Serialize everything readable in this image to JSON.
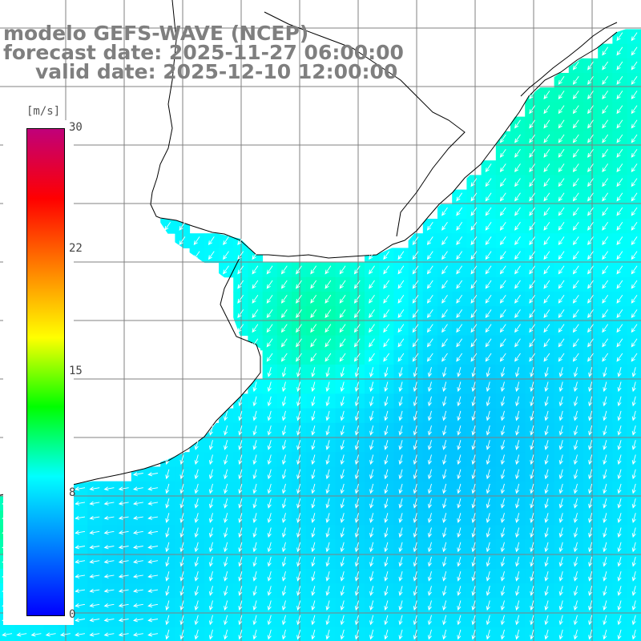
{
  "title": {
    "line1": "modelo GEFS-WAVE (NCEP)",
    "line2": "forecast date: 2025-11-27 06:00:00",
    "line3": "valid date: 2025-12-10 12:00:00"
  },
  "colorbar": {
    "units": "[m/s]",
    "ticks": [
      "30",
      "22",
      "15",
      "8",
      "0"
    ],
    "tick_values": [
      30,
      22,
      15,
      8,
      0
    ],
    "range": [
      0,
      30
    ],
    "colors": [
      "#0000ff",
      "#0080ff",
      "#00ffff",
      "#00ff00",
      "#ffff00",
      "#ff8000",
      "#ff0000",
      "#c0007a"
    ]
  },
  "map": {
    "variable": "wind speed and direction",
    "land_color": "#ffffff",
    "coastline_color": "#000000",
    "grid_color": "#808080",
    "wind_dominant_direction": "from north-east (arrows pointing south-west)"
  }
}
